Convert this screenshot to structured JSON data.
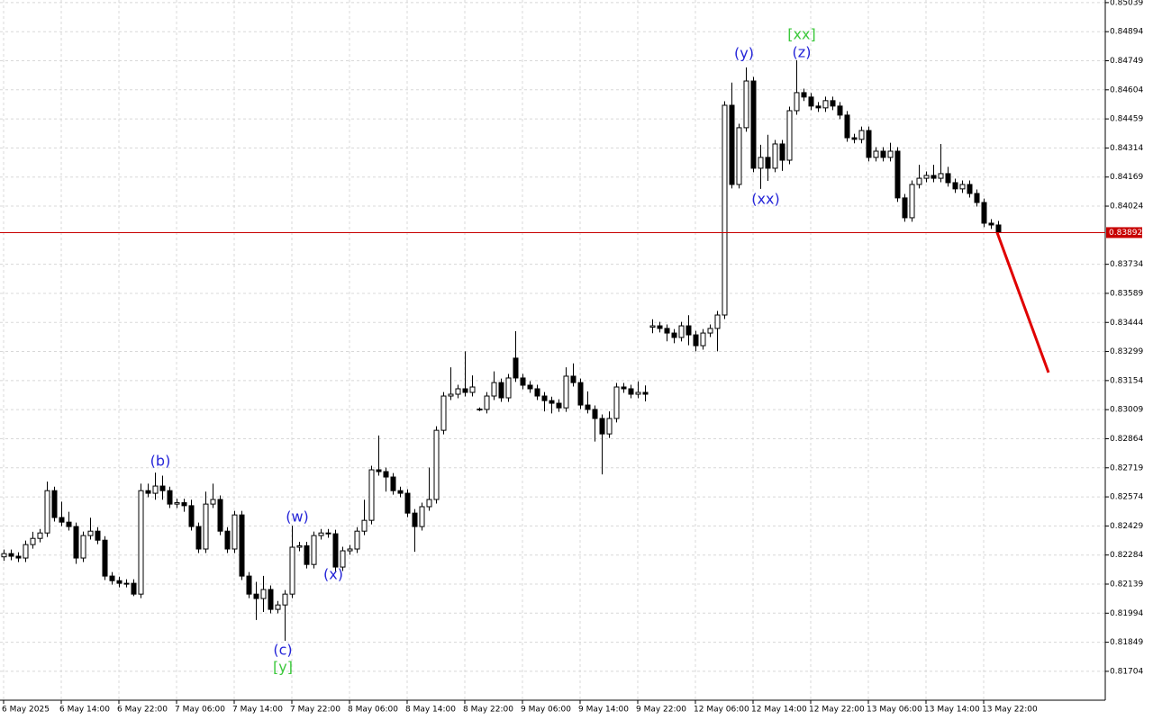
{
  "chart_data": {
    "type": "candlestick",
    "ylim": [
      0.8156,
      0.85052
    ],
    "yticks": [
      0.85039,
      0.84894,
      0.84749,
      0.84604,
      0.84459,
      0.84314,
      0.84169,
      0.84024,
      0.83734,
      0.83589,
      0.83444,
      0.83299,
      0.83154,
      0.83009,
      0.82864,
      0.82719,
      0.82574,
      0.82429,
      0.82284,
      0.82139,
      0.81994,
      0.81849,
      0.81704
    ],
    "grid": true,
    "up_color": "#ffffff",
    "down_color": "#000000",
    "categories": [
      "6 May 2025",
      null,
      null,
      null,
      null,
      null,
      null,
      null,
      "6 May 14:00",
      null,
      null,
      null,
      null,
      null,
      null,
      null,
      "6 May 22:00",
      null,
      null,
      null,
      null,
      null,
      null,
      null,
      "7 May 06:00",
      null,
      null,
      null,
      null,
      null,
      null,
      null,
      "7 May 14:00",
      null,
      null,
      null,
      null,
      null,
      null,
      null,
      "7 May 22:00",
      null,
      null,
      null,
      null,
      null,
      null,
      null,
      "8 May 06:00",
      null,
      null,
      null,
      null,
      null,
      null,
      null,
      "8 May 14:00",
      null,
      null,
      null,
      null,
      null,
      null,
      null,
      "8 May 22:00",
      null,
      null,
      null,
      null,
      null,
      null,
      null,
      "9 May 06:00",
      null,
      null,
      null,
      null,
      null,
      null,
      null,
      "9 May 14:00",
      null,
      null,
      null,
      null,
      null,
      null,
      null,
      "9 May 22:00",
      null,
      null,
      null,
      null,
      null,
      null,
      null,
      "12 May 06:00",
      null,
      null,
      null,
      null,
      null,
      null,
      null,
      "12 May 14:00",
      null,
      null,
      null,
      null,
      null,
      null,
      null,
      "12 May 22:00",
      null,
      null,
      null,
      null,
      null,
      null,
      null,
      "13 May 06:00",
      null,
      null,
      null,
      null,
      null,
      null,
      null,
      "13 May 14:00",
      null,
      null,
      null,
      null,
      null,
      null,
      null,
      "13 May 22:00",
      null,
      null
    ],
    "open": [
      0.82275,
      0.82291,
      0.82278,
      0.82269,
      0.82336,
      0.82367,
      0.82394,
      0.82605,
      0.82471,
      0.82448,
      0.82426,
      0.82269,
      0.82381,
      0.82403,
      0.82358,
      0.82179,
      0.82156,
      0.82143,
      0.82143,
      0.82089,
      0.82605,
      0.82592,
      0.82628,
      0.82605,
      0.82538,
      0.82545,
      0.8253,
      0.82426,
      0.82314,
      0.82538,
      0.82561,
      0.82403,
      0.82314,
      0.82484,
      0.82179,
      0.82089,
      0.82067,
      0.82112,
      0.82013,
      0.82035,
      0.82089,
      0.82323,
      0.8233,
      0.82237,
      0.82381,
      0.82394,
      0.8239,
      0.82224,
      0.82305,
      0.82314,
      0.82403,
      0.82457,
      0.82709,
      0.827,
      0.82673,
      0.82605,
      0.82592,
      0.82493,
      0.82426,
      0.82525,
      0.82561,
      0.82906,
      0.83077,
      0.83086,
      0.83113,
      0.83095,
      0.83012,
      0.8301,
      0.83077,
      0.83144,
      0.83068,
      0.83266,
      0.83167,
      0.83131,
      0.83113,
      0.83077,
      0.83054,
      0.83041,
      0.83018,
      0.83176,
      0.83144,
      0.83032,
      0.8301,
      0.82965,
      0.82888,
      0.82965,
      0.83122,
      0.83113,
      0.83086,
      0.83095,
      0.8342,
      0.83427,
      0.83414,
      0.83391,
      0.83369,
      0.83427,
      0.83382,
      0.83328,
      0.83391,
      0.83414,
      0.83481,
      0.84527,
      0.84132,
      0.84415,
      0.84648,
      0.84213,
      0.84267,
      0.84213,
      0.84334,
      0.84253,
      0.845,
      0.8459,
      0.84568,
      0.84523,
      0.84514,
      0.8455,
      0.84523,
      0.84478,
      0.84365,
      0.84357,
      0.84401,
      0.84267,
      0.84298,
      0.84267,
      0.84298,
      0.84065,
      0.83966,
      0.84132,
      0.84163,
      0.84177,
      0.84163,
      0.84186,
      0.84141,
      0.8411,
      0.84132,
      0.84087,
      0.84042,
      0.83939,
      0.8393
    ],
    "high": [
      0.82311,
      0.82311,
      0.82298,
      0.82356,
      0.824,
      0.82414,
      0.8265,
      0.82625,
      0.8255,
      0.825,
      0.82446,
      0.82401,
      0.8247,
      0.82423,
      0.82378,
      0.82199,
      0.82176,
      0.82163,
      0.82163,
      0.8264,
      0.8264,
      0.82695,
      0.8268,
      0.82625,
      0.82565,
      0.82565,
      0.8256,
      0.82446,
      0.826,
      0.8264,
      0.82581,
      0.82423,
      0.82504,
      0.82504,
      0.82199,
      0.8215,
      0.8218,
      0.82132,
      0.82055,
      0.82109,
      0.8243,
      0.8235,
      0.8235,
      0.82401,
      0.82414,
      0.82414,
      0.8241,
      0.82325,
      0.82334,
      0.82423,
      0.8256,
      0.82729,
      0.8288,
      0.8272,
      0.82693,
      0.82625,
      0.82612,
      0.82513,
      0.82545,
      0.8272,
      0.82926,
      0.83097,
      0.8322,
      0.83133,
      0.833,
      0.8318,
      0.8302,
      0.83097,
      0.832,
      0.83164,
      0.83187,
      0.834,
      0.83187,
      0.83151,
      0.83133,
      0.83097,
      0.83074,
      0.83061,
      0.8322,
      0.8324,
      0.83164,
      0.831,
      0.8303,
      0.82985,
      0.83,
      0.83142,
      0.83142,
      0.83133,
      0.8315,
      0.8313,
      0.8346,
      0.83447,
      0.83434,
      0.83411,
      0.83447,
      0.8348,
      0.83402,
      0.83411,
      0.83434,
      0.83501,
      0.84547,
      0.8464,
      0.84435,
      0.84716,
      0.84668,
      0.8433,
      0.8438,
      0.84354,
      0.84354,
      0.8452,
      0.84752,
      0.8461,
      0.84588,
      0.84543,
      0.8457,
      0.8457,
      0.84543,
      0.84498,
      0.84385,
      0.84421,
      0.84421,
      0.84318,
      0.84318,
      0.8434,
      0.84318,
      0.84085,
      0.84152,
      0.8423,
      0.84197,
      0.8423,
      0.84334,
      0.8422,
      0.84161,
      0.84152,
      0.84152,
      0.84107,
      0.84062,
      0.83959,
      0.8395
    ],
    "low": [
      0.82255,
      0.82258,
      0.82249,
      0.82249,
      0.82316,
      0.82347,
      0.82374,
      0.82451,
      0.82428,
      0.82406,
      0.8224,
      0.82249,
      0.82361,
      0.82338,
      0.82159,
      0.82136,
      0.82123,
      0.82123,
      0.82079,
      0.82069,
      0.82572,
      0.8256,
      0.8256,
      0.82518,
      0.82518,
      0.825,
      0.82406,
      0.82294,
      0.82294,
      0.82518,
      0.82383,
      0.82294,
      0.82294,
      0.82159,
      0.82069,
      0.8196,
      0.82,
      0.81993,
      0.81993,
      0.81856,
      0.82069,
      0.82303,
      0.82217,
      0.82217,
      0.82361,
      0.8237,
      0.82204,
      0.82204,
      0.82285,
      0.82294,
      0.82383,
      0.82437,
      0.8268,
      0.826,
      0.82585,
      0.82572,
      0.82473,
      0.823,
      0.82406,
      0.82505,
      0.82541,
      0.82886,
      0.83057,
      0.83066,
      0.83075,
      0.83075,
      0.83002,
      0.8299,
      0.83057,
      0.83048,
      0.83048,
      0.83147,
      0.83111,
      0.83093,
      0.83057,
      0.83,
      0.8299,
      0.82998,
      0.82998,
      0.83124,
      0.83012,
      0.8299,
      0.8285,
      0.82686,
      0.82868,
      0.82945,
      0.83093,
      0.83066,
      0.83066,
      0.8305,
      0.8339,
      0.83394,
      0.8335,
      0.8334,
      0.83349,
      0.8333,
      0.833,
      0.83308,
      0.83371,
      0.833,
      0.83461,
      0.84112,
      0.84112,
      0.84395,
      0.84193,
      0.8411,
      0.8415,
      0.84193,
      0.842,
      0.84233,
      0.8448,
      0.84548,
      0.84503,
      0.84494,
      0.84494,
      0.84503,
      0.84458,
      0.84345,
      0.84337,
      0.84337,
      0.84247,
      0.84247,
      0.84247,
      0.84247,
      0.84045,
      0.83946,
      0.83946,
      0.84112,
      0.84143,
      0.84143,
      0.84143,
      0.84121,
      0.8409,
      0.8409,
      0.84067,
      0.84022,
      0.83919,
      0.8391,
      0.83863
    ],
    "close": [
      0.82291,
      0.82278,
      0.82269,
      0.82336,
      0.82367,
      0.82394,
      0.82605,
      0.82471,
      0.82448,
      0.82426,
      0.82269,
      0.82381,
      0.82403,
      0.82358,
      0.82179,
      0.82156,
      0.82143,
      0.82143,
      0.82089,
      0.82605,
      0.82592,
      0.82628,
      0.82605,
      0.82538,
      0.82545,
      0.8253,
      0.82426,
      0.82314,
      0.82538,
      0.82561,
      0.82403,
      0.82314,
      0.82484,
      0.82179,
      0.82089,
      0.82067,
      0.82112,
      0.82013,
      0.82035,
      0.82089,
      0.82323,
      0.8233,
      0.82237,
      0.82381,
      0.82394,
      0.8239,
      0.82224,
      0.82305,
      0.82314,
      0.82403,
      0.82457,
      0.82709,
      0.827,
      0.82673,
      0.82605,
      0.82592,
      0.82493,
      0.82426,
      0.82525,
      0.82561,
      0.82906,
      0.83077,
      0.83086,
      0.83113,
      0.83095,
      0.83122,
      0.8301,
      0.83077,
      0.83144,
      0.83068,
      0.83167,
      0.83167,
      0.83131,
      0.83113,
      0.83077,
      0.83054,
      0.83041,
      0.83018,
      0.83176,
      0.83144,
      0.83032,
      0.8301,
      0.82965,
      0.82888,
      0.82965,
      0.83122,
      0.83113,
      0.83086,
      0.83095,
      0.83086,
      0.83427,
      0.83414,
      0.83391,
      0.83369,
      0.83427,
      0.83382,
      0.83328,
      0.83391,
      0.83414,
      0.83481,
      0.84527,
      0.84132,
      0.84415,
      0.84648,
      0.84213,
      0.84267,
      0.84213,
      0.84334,
      0.84253,
      0.845,
      0.8459,
      0.84568,
      0.84523,
      0.84514,
      0.8455,
      0.84523,
      0.84478,
      0.84365,
      0.84357,
      0.84401,
      0.84267,
      0.84298,
      0.84267,
      0.84298,
      0.84065,
      0.83966,
      0.84132,
      0.84163,
      0.84177,
      0.84163,
      0.84186,
      0.84141,
      0.8411,
      0.84132,
      0.84087,
      0.84042,
      0.83939,
      0.8393,
      0.83892
    ],
    "current_price": 0.83892,
    "current_price_color": "#c80000",
    "forecast": {
      "color": "#e00000",
      "values": [
        0.83892,
        0.83194
      ]
    },
    "annotations": [
      {
        "text": "(b)",
        "color": "#2424d8"
      },
      {
        "text": "(w)",
        "color": "#2424d8"
      },
      {
        "text": "(x)",
        "color": "#2424d8"
      },
      {
        "text": "(c)",
        "color": "#2424d8"
      },
      {
        "text": "[y]",
        "color": "#3cc83c"
      },
      {
        "text": "(y)",
        "color": "#2424d8"
      },
      {
        "text": "[xx]",
        "color": "#3cc83c"
      },
      {
        "text": "(z)",
        "color": "#2424d8"
      },
      {
        "text": "(xx)",
        "color": "#2424d8"
      }
    ]
  }
}
